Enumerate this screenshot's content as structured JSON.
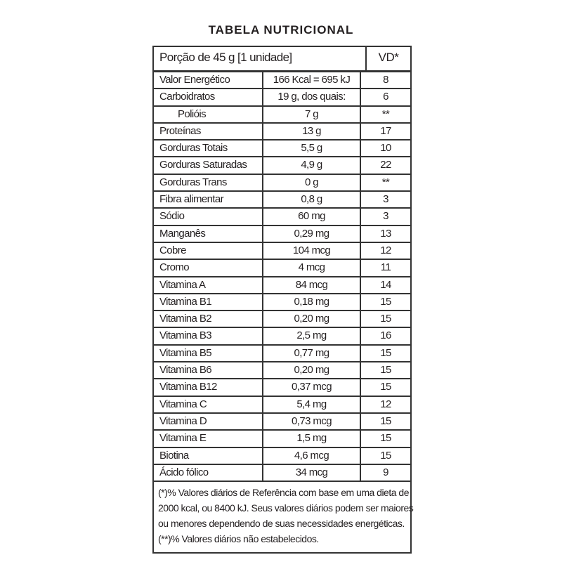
{
  "title": "TABELA NUTRICIONAL",
  "header": {
    "portion": "Porção de 45 g  [1 unidade]",
    "vd": "VD*"
  },
  "rows": [
    {
      "name": "Valor Energético",
      "value": "166 Kcal = 695 kJ",
      "vd": "8"
    },
    {
      "name": "Carboidratos",
      "value": "19 g, dos quais:",
      "vd": "6"
    },
    {
      "name": "Polióis",
      "value": "7 g",
      "vd": "**",
      "sub": true
    },
    {
      "name": "Proteínas",
      "value": "13 g",
      "vd": "17"
    },
    {
      "name": "Gorduras Totais",
      "value": "5,5 g",
      "vd": "10"
    },
    {
      "name": "Gorduras Saturadas",
      "value": "4,9 g",
      "vd": "22"
    },
    {
      "name": "Gorduras Trans",
      "value": "0 g",
      "vd": "**"
    },
    {
      "name": "Fibra alimentar",
      "value": "0,8 g",
      "vd": "3"
    },
    {
      "name": "Sódio",
      "value": "60 mg",
      "vd": "3"
    },
    {
      "name": "Manganês",
      "value": "0,29 mg",
      "vd": "13"
    },
    {
      "name": "Cobre",
      "value": "104 mcg",
      "vd": "12"
    },
    {
      "name": "Cromo",
      "value": "4 mcg",
      "vd": "11"
    },
    {
      "name": "Vitamina A",
      "value": "84 mcg",
      "vd": "14"
    },
    {
      "name": "Vitamina B1",
      "value": "0,18 mg",
      "vd": "15"
    },
    {
      "name": "Vitamina B2",
      "value": "0,20 mg",
      "vd": "15"
    },
    {
      "name": "Vitamina B3",
      "value": "2,5 mg",
      "vd": "16"
    },
    {
      "name": "Vitamina B5",
      "value": "0,77 mg",
      "vd": "15"
    },
    {
      "name": "Vitamina B6",
      "value": "0,20 mg",
      "vd": "15"
    },
    {
      "name": "Vitamina B12",
      "value": "0,37 mcg",
      "vd": "15"
    },
    {
      "name": "Vitamina C",
      "value": "5,4 mg",
      "vd": "12"
    },
    {
      "name": "Vitamina D",
      "value": "0,73 mcg",
      "vd": "15"
    },
    {
      "name": "Vitamina E",
      "value": "1,5 mg",
      "vd": "15"
    },
    {
      "name": "Biotina",
      "value": "4,6 mcg",
      "vd": "15"
    },
    {
      "name": "Ácido fólico",
      "value": "34 mcg",
      "vd": "9"
    }
  ],
  "footnote": [
    "(*)% Valores diários de Referência com base em uma dieta de",
    "2000 kcal, ou 8400 kJ. Seus valores diários podem ser maiores",
    "ou menores dependendo de suas necessidades energéticas.",
    "(**)% Valores diários não estabelecidos."
  ]
}
